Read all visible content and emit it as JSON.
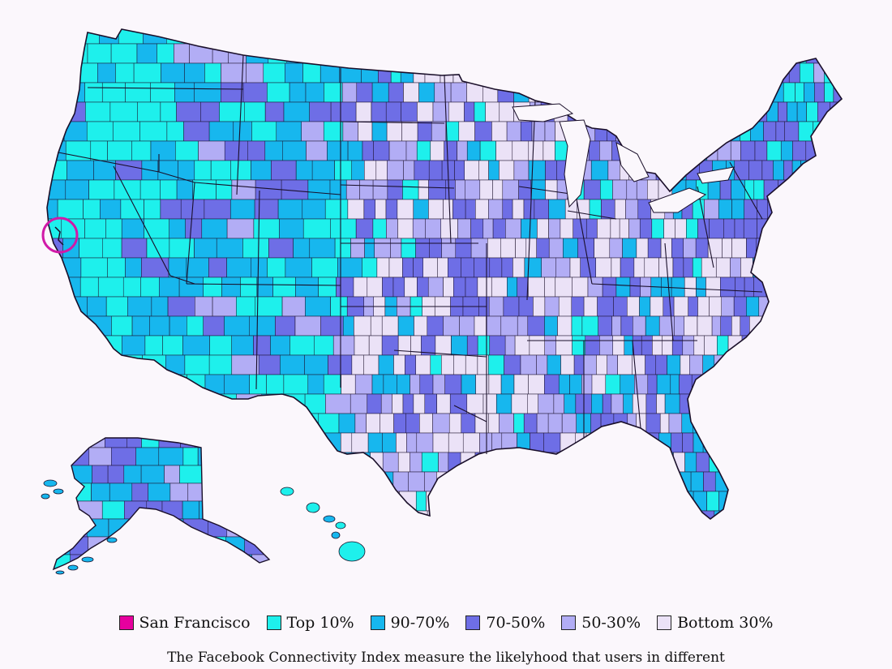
{
  "map": {
    "region": "United States counties",
    "highlight_label": "San Francisco",
    "highlight_marker": "circle"
  },
  "legend": [
    {
      "label": "San Francisco",
      "color": "#e6009e"
    },
    {
      "label": "Top 10%",
      "color": "#1ef0ec"
    },
    {
      "label": "90-70%",
      "color": "#17b7ee"
    },
    {
      "label": "70-50%",
      "color": "#6e6ee6"
    },
    {
      "label": "50-30%",
      "color": "#b2adf5"
    },
    {
      "label": "Bottom 30%",
      "color": "#ebe2f7"
    }
  ],
  "caption": "The Facebook Connectivity Index measure the likelyhood that users in different",
  "colors": {
    "background": "#fbf7fc",
    "outline": "#1a0f2a",
    "highlight_ring": "#d11aa8"
  }
}
